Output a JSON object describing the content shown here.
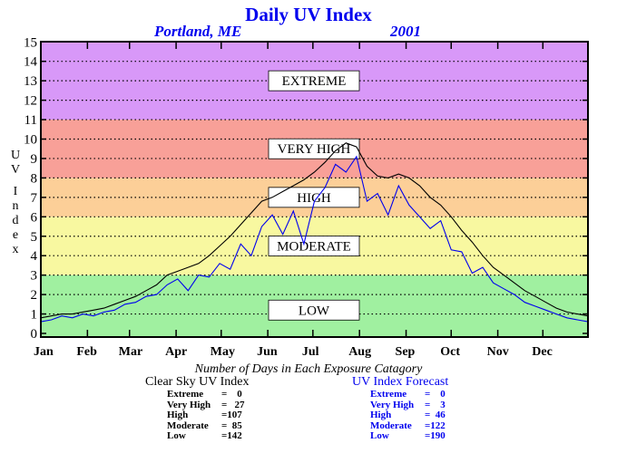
{
  "header": {
    "title": "Daily UV Index",
    "location": "Portland, ME",
    "year": "2001"
  },
  "chart_data": {
    "type": "line",
    "title": "Daily UV Index",
    "ylabel": "UV Index",
    "ylim": [
      0,
      15
    ],
    "yticks": [
      0,
      1,
      2,
      3,
      4,
      5,
      6,
      7,
      8,
      9,
      10,
      11,
      12,
      13,
      14,
      15
    ],
    "x_ticks": [
      "Jan",
      "Feb",
      "Mar",
      "Apr",
      "May",
      "Jun",
      "Jul",
      "Aug",
      "Sep",
      "Oct",
      "Nov",
      "Dec"
    ],
    "x_domain_days": [
      1,
      365
    ],
    "grid": "horizontal dotted",
    "bands": [
      {
        "label": "LOW",
        "from": 0,
        "to": 3,
        "color": "#a0f0a0"
      },
      {
        "label": "MODERATE",
        "from": 3,
        "to": 6,
        "color": "#f8f8a0"
      },
      {
        "label": "HIGH",
        "from": 6,
        "to": 8,
        "color": "#fccf98"
      },
      {
        "label": "VERY HIGH",
        "from": 8,
        "to": 11,
        "color": "#f8a098"
      },
      {
        "label": "EXTREME",
        "from": 11,
        "to": 15,
        "color": "#d898f8"
      }
    ],
    "series": [
      {
        "name": "Clear Sky UV Index",
        "color": "#000000",
        "day_step": 7,
        "values": [
          0.8,
          0.9,
          1.0,
          1.0,
          1.1,
          1.2,
          1.3,
          1.5,
          1.7,
          1.9,
          2.2,
          2.5,
          3.0,
          3.2,
          3.4,
          3.6,
          4.0,
          4.5,
          5.0,
          5.6,
          6.2,
          6.8,
          7.0,
          7.3,
          7.6,
          7.9,
          8.3,
          8.8,
          9.4,
          9.8,
          9.6,
          8.6,
          8.1,
          8.0,
          8.2,
          8.0,
          7.6,
          7.0,
          6.6,
          6.0,
          5.3,
          4.7,
          4.0,
          3.4,
          3.0,
          2.6,
          2.2,
          1.9,
          1.6,
          1.3,
          1.1,
          1.0,
          0.9
        ]
      },
      {
        "name": "UV Index Forecast",
        "color": "#0000ee",
        "day_step": 7,
        "values": [
          0.6,
          0.7,
          0.9,
          0.8,
          1.0,
          0.9,
          1.1,
          1.2,
          1.5,
          1.6,
          1.9,
          2.0,
          2.5,
          2.8,
          2.2,
          3.0,
          2.9,
          3.6,
          3.3,
          4.6,
          4.0,
          5.5,
          6.1,
          5.1,
          6.3,
          4.6,
          6.8,
          7.5,
          8.7,
          8.3,
          9.1,
          6.8,
          7.2,
          6.1,
          7.6,
          6.6,
          6.0,
          5.4,
          5.8,
          4.3,
          4.2,
          3.1,
          3.4,
          2.6,
          2.3,
          2.0,
          1.6,
          1.4,
          1.2,
          1.0,
          0.8,
          0.7,
          0.6
        ]
      }
    ]
  },
  "counts": {
    "heading": "Number of Days in Each Exposure Catagory",
    "clear": {
      "title": "Clear Sky UV Index",
      "rows": [
        {
          "label": "Extreme",
          "value": "=    0"
        },
        {
          "label": "Very High",
          "value": "=   27"
        },
        {
          "label": "High",
          "value": "=107"
        },
        {
          "label": "Moderate",
          "value": "=  85"
        },
        {
          "label": "Low",
          "value": "=142"
        }
      ]
    },
    "forecast": {
      "title": "UV Index Forecast",
      "rows": [
        {
          "label": "Extreme",
          "value": "=    0"
        },
        {
          "label": "Very High",
          "value": "=    3"
        },
        {
          "label": "High",
          "value": "=  46"
        },
        {
          "label": "Moderate",
          "value": "=122"
        },
        {
          "label": "Low",
          "value": "=190"
        }
      ]
    }
  }
}
